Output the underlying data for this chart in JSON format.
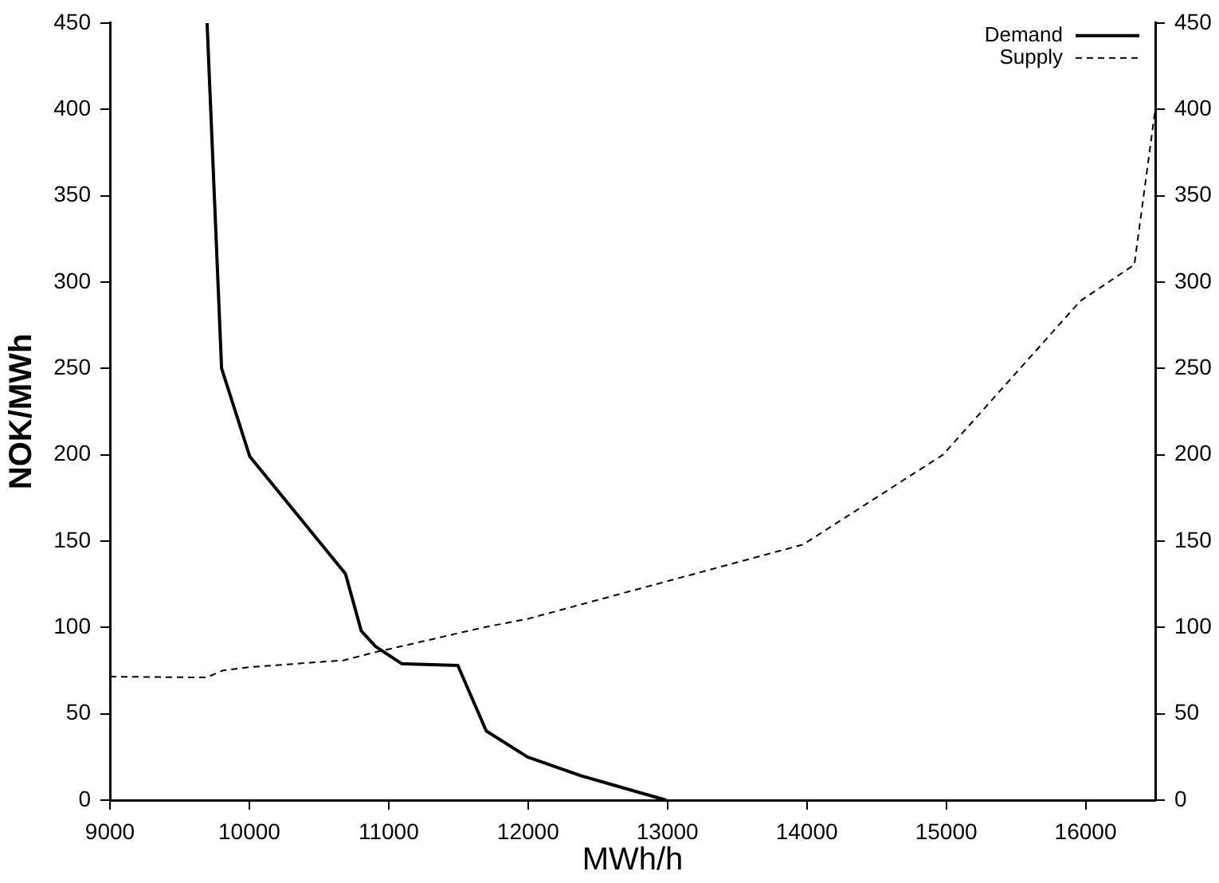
{
  "chart_data": {
    "type": "line",
    "xlabel": "MWh/h",
    "ylabel": "NOK/MWh",
    "xlim": [
      9000,
      16500
    ],
    "xticks": [
      9000,
      10000,
      11000,
      12000,
      13000,
      14000,
      15000,
      16000
    ],
    "ylim": [
      0,
      450
    ],
    "yticks": [
      0,
      50,
      100,
      150,
      200,
      250,
      300,
      350,
      400,
      450
    ],
    "y2lim": [
      0,
      450
    ],
    "y2ticks": [
      0,
      50,
      100,
      150,
      200,
      250,
      300,
      350,
      400,
      450
    ],
    "grid": false,
    "legend": "top right",
    "marker": "none",
    "series": [
      {
        "name": "Demand",
        "color": "#000000",
        "line_style": "solid",
        "x": [
          9697,
          9801,
          10003,
          10690,
          10803,
          10905,
          11094,
          11496,
          11700,
          11996,
          12383,
          12990
        ],
        "values": [
          450,
          250,
          199,
          131,
          98,
          89,
          79,
          78,
          40,
          25,
          14,
          0
        ]
      },
      {
        "name": "Supply",
        "color": "#000000",
        "line_style": "dashed",
        "x": [
          9000,
          9693,
          9807,
          10000,
          10680,
          10870,
          11680,
          12000,
          13974,
          14977,
          15962,
          16350,
          16500
        ],
        "values": [
          71.5,
          71,
          75,
          77,
          81,
          85,
          100,
          105,
          148,
          200,
          289,
          310,
          400
        ]
      }
    ]
  }
}
